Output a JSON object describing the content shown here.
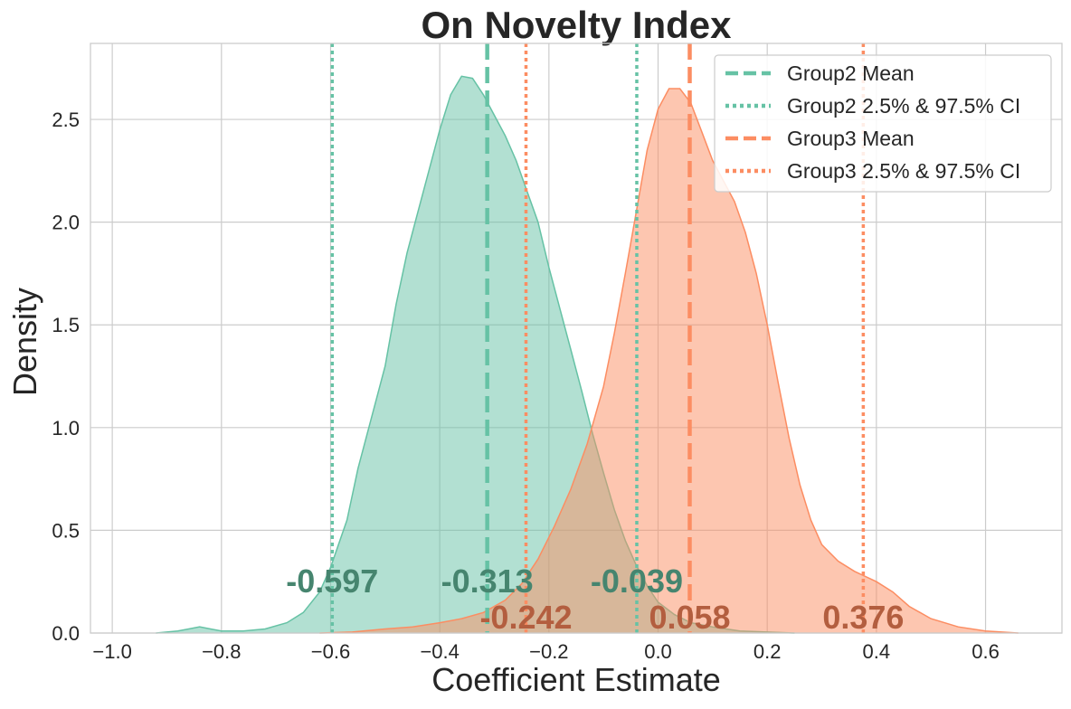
{
  "chart_data": {
    "type": "area",
    "title": "On Novelty Index",
    "xlabel": "Coefficient Estimate",
    "ylabel": "Density",
    "xlim": [
      -1.04,
      0.74
    ],
    "ylim": [
      0,
      2.87
    ],
    "xticks": [
      -1.0,
      -0.8,
      -0.6,
      -0.4,
      -0.2,
      0.0,
      0.2,
      0.4,
      0.6
    ],
    "xtick_labels": [
      "−1.0",
      "−0.8",
      "−0.6",
      "−0.4",
      "−0.2",
      "0.0",
      "0.2",
      "0.4",
      "0.6"
    ],
    "yticks": [
      0.0,
      0.5,
      1.0,
      1.5,
      2.0,
      2.5
    ],
    "ytick_labels": [
      "0.0",
      "0.5",
      "1.0",
      "1.5",
      "2.0",
      "2.5"
    ],
    "grid": true,
    "legend_position": "top-right",
    "series": [
      {
        "name": "Group2",
        "color": "#66c2a5",
        "annotation_color": "#46856f",
        "mean": -0.313,
        "ci_low": -0.597,
        "ci_high": -0.039,
        "mean_label": "-0.313",
        "ci_low_label": "-0.597",
        "ci_high_label": "-0.039",
        "density_x": [
          -0.92,
          -0.88,
          -0.86,
          -0.84,
          -0.82,
          -0.8,
          -0.76,
          -0.72,
          -0.68,
          -0.65,
          -0.62,
          -0.6,
          -0.57,
          -0.55,
          -0.52,
          -0.5,
          -0.48,
          -0.46,
          -0.44,
          -0.42,
          -0.4,
          -0.38,
          -0.36,
          -0.34,
          -0.32,
          -0.3,
          -0.28,
          -0.26,
          -0.24,
          -0.22,
          -0.2,
          -0.18,
          -0.16,
          -0.14,
          -0.12,
          -0.1,
          -0.08,
          -0.06,
          -0.04,
          -0.02,
          0.0,
          0.03,
          0.06,
          0.1,
          0.15,
          0.2,
          0.25
        ],
        "density_y": [
          0.0,
          0.01,
          0.02,
          0.03,
          0.02,
          0.01,
          0.01,
          0.02,
          0.05,
          0.1,
          0.2,
          0.32,
          0.55,
          0.8,
          1.1,
          1.3,
          1.6,
          1.85,
          2.05,
          2.25,
          2.45,
          2.62,
          2.71,
          2.7,
          2.62,
          2.52,
          2.42,
          2.3,
          2.15,
          2.0,
          1.78,
          1.58,
          1.38,
          1.18,
          0.97,
          0.78,
          0.6,
          0.45,
          0.33,
          0.23,
          0.15,
          0.09,
          0.05,
          0.03,
          0.01,
          0.005,
          0.0
        ]
      },
      {
        "name": "Group3",
        "color": "#fc8d62",
        "annotation_color": "#b35e3f",
        "mean": 0.058,
        "ci_low": -0.242,
        "ci_high": 0.376,
        "mean_label": "0.058",
        "ci_low_label": "-0.242",
        "ci_high_label": "0.376",
        "density_x": [
          -0.62,
          -0.56,
          -0.5,
          -0.45,
          -0.4,
          -0.36,
          -0.32,
          -0.28,
          -0.25,
          -0.22,
          -0.19,
          -0.16,
          -0.13,
          -0.1,
          -0.08,
          -0.06,
          -0.04,
          -0.02,
          0.0,
          0.02,
          0.04,
          0.06,
          0.08,
          0.1,
          0.12,
          0.14,
          0.16,
          0.18,
          0.2,
          0.22,
          0.24,
          0.26,
          0.28,
          0.3,
          0.33,
          0.36,
          0.4,
          0.43,
          0.46,
          0.5,
          0.55,
          0.6,
          0.66
        ],
        "density_y": [
          0.0,
          0.005,
          0.02,
          0.03,
          0.05,
          0.07,
          0.1,
          0.16,
          0.24,
          0.36,
          0.52,
          0.7,
          0.92,
          1.2,
          1.46,
          1.75,
          2.05,
          2.35,
          2.55,
          2.65,
          2.65,
          2.58,
          2.44,
          2.3,
          2.2,
          2.1,
          1.95,
          1.75,
          1.5,
          1.22,
          0.95,
          0.72,
          0.55,
          0.43,
          0.35,
          0.3,
          0.25,
          0.2,
          0.13,
          0.07,
          0.03,
          0.01,
          0.0
        ]
      }
    ],
    "legend": [
      {
        "label": "Group2 Mean",
        "color": "#66c2a5",
        "style": "dashed"
      },
      {
        "label": "Group2 2.5% & 97.5% CI",
        "color": "#66c2a5",
        "style": "dotted"
      },
      {
        "label": "Group3 Mean",
        "color": "#fc8d62",
        "style": "dashed"
      },
      {
        "label": "Group3 2.5% & 97.5% CI",
        "color": "#fc8d62",
        "style": "dotted"
      }
    ]
  }
}
